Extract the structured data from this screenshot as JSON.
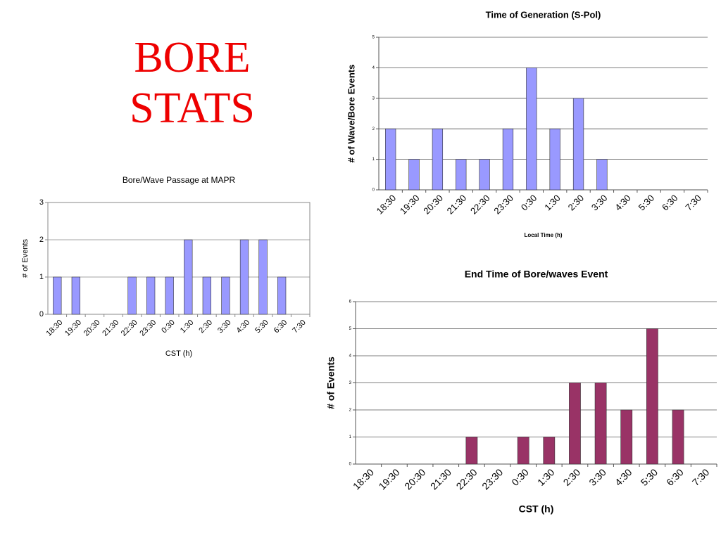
{
  "title": [
    "BORE",
    "STATS"
  ],
  "chart_data": [
    {
      "type": "bar",
      "title": "Bore/Wave Passage at MAPR",
      "categories": [
        "18:30",
        "19:30",
        "20:30",
        "21:30",
        "22:30",
        "23:30",
        "0:30",
        "1:30",
        "2:30",
        "3:30",
        "4:30",
        "5:30",
        "6:30",
        "7:30"
      ],
      "values": [
        1,
        1,
        0,
        0,
        1,
        1,
        1,
        2,
        1,
        1,
        2,
        2,
        1,
        0
      ],
      "color": "#9999ff",
      "ylim": [
        0,
        3
      ],
      "yticks": [
        0,
        1,
        2,
        3
      ],
      "grid": true,
      "ylabel": "# of Events",
      "xlabel": "CST (h)"
    },
    {
      "type": "bar",
      "title": "Time of Generation (S-Pol)",
      "categories": [
        "18:30",
        "19:30",
        "20:30",
        "21:30",
        "22:30",
        "23:30",
        "0:30",
        "1:30",
        "2:30",
        "3:30",
        "4:30",
        "5:30",
        "6:30",
        "7:30"
      ],
      "values": [
        2,
        1,
        2,
        1,
        1,
        2,
        4,
        2,
        3,
        1,
        0,
        0,
        0,
        0
      ],
      "color": "#9999ff",
      "ylim": [
        0,
        5
      ],
      "yticks": [
        0,
        1,
        2,
        3,
        4,
        5
      ],
      "grid": true,
      "ylabel": "# of Wave/Bore Events",
      "xlabel": "Local Time (h)"
    },
    {
      "type": "bar",
      "title": "End Time of Bore/waves Event",
      "categories": [
        "18:30",
        "19:30",
        "20:30",
        "21:30",
        "22:30",
        "23:30",
        "0:30",
        "1:30",
        "2:30",
        "3:30",
        "4:30",
        "5:30",
        "6:30",
        "7:30"
      ],
      "values": [
        0,
        0,
        0,
        0,
        1,
        0,
        1,
        1,
        3,
        3,
        2,
        5,
        2,
        0
      ],
      "color": "#993366",
      "ylim": [
        0,
        6
      ],
      "yticks": [
        0,
        1,
        2,
        3,
        4,
        5,
        6
      ],
      "grid": true,
      "ylabel": "# of Events",
      "xlabel": "CST (h)"
    }
  ]
}
